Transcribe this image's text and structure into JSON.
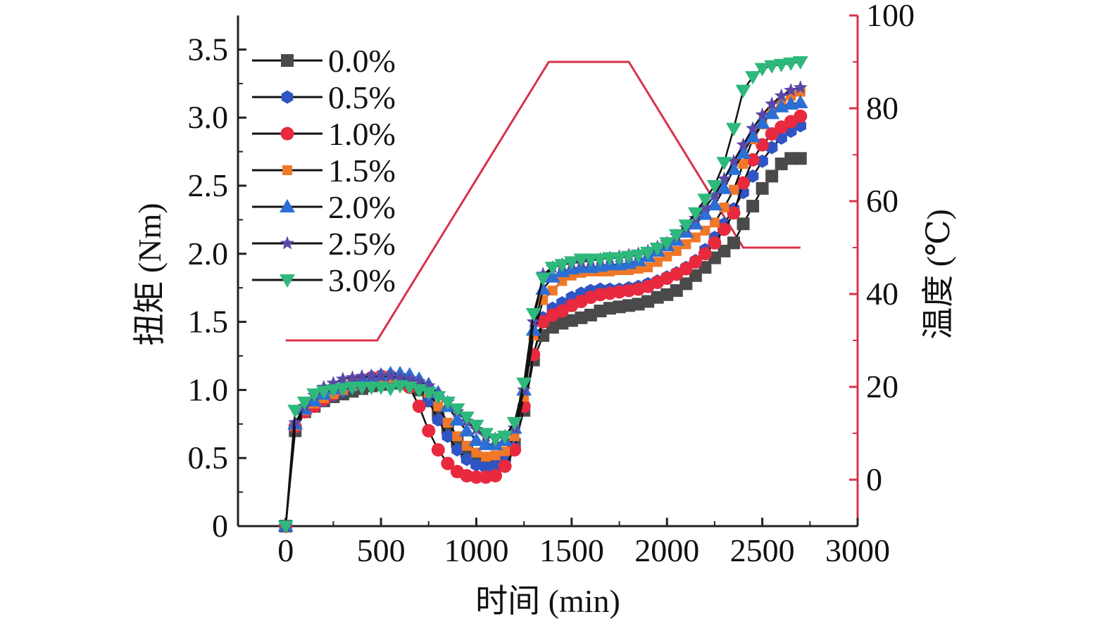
{
  "chart_data": {
    "type": "line",
    "xlabel": "时间 (min)",
    "ylabel": "扭矩 (Nm)",
    "y2label": "温度 (℃)",
    "xlim": [
      -250,
      3000
    ],
    "ylim": [
      0,
      3.75
    ],
    "y2lim": [
      -10,
      100
    ],
    "x_ticks": [
      0,
      500,
      1000,
      1500,
      2000,
      2500,
      3000
    ],
    "x_tick_labels": [
      "0",
      "500",
      "1000",
      "1500",
      "2000",
      "2500",
      "3000"
    ],
    "y_ticks": [
      0,
      0.5,
      1.0,
      1.5,
      2.0,
      2.5,
      3.0,
      3.5
    ],
    "y_tick_labels": [
      "0",
      "0.5",
      "1.0",
      "1.5",
      "2.0",
      "2.5",
      "3.0",
      "3.5"
    ],
    "y2_ticks": [
      0,
      20,
      40,
      60,
      80,
      100
    ],
    "y2_tick_labels": [
      "0",
      "20",
      "40",
      "60",
      "80",
      "100"
    ],
    "legend_position": "top-left",
    "axis_color": "#222222",
    "y2_axis_color": "#d8324a",
    "x": [
      0,
      50,
      100,
      150,
      200,
      250,
      300,
      350,
      400,
      450,
      500,
      550,
      600,
      650,
      700,
      750,
      800,
      850,
      900,
      950,
      1000,
      1050,
      1100,
      1150,
      1200,
      1250,
      1300,
      1350,
      1400,
      1450,
      1500,
      1550,
      1600,
      1650,
      1700,
      1750,
      1800,
      1850,
      1900,
      1950,
      2000,
      2050,
      2100,
      2150,
      2200,
      2250,
      2300,
      2350,
      2400,
      2450,
      2500,
      2550,
      2600,
      2650,
      2700
    ],
    "series": [
      {
        "name": "0.0%",
        "marker": "square",
        "color": "#4a4a4a",
        "values": [
          0,
          0.7,
          0.84,
          0.88,
          0.92,
          0.95,
          0.97,
          0.99,
          1.01,
          1.03,
          1.04,
          1.05,
          1.05,
          1.04,
          1.0,
          0.92,
          0.82,
          0.72,
          0.62,
          0.55,
          0.5,
          0.48,
          0.49,
          0.52,
          0.6,
          0.85,
          1.22,
          1.4,
          1.46,
          1.49,
          1.51,
          1.53,
          1.55,
          1.58,
          1.6,
          1.61,
          1.62,
          1.63,
          1.65,
          1.68,
          1.7,
          1.73,
          1.78,
          1.84,
          1.9,
          1.97,
          2.02,
          2.08,
          2.22,
          2.35,
          2.48,
          2.57,
          2.66,
          2.7,
          2.7
        ]
      },
      {
        "name": "0.5%",
        "marker": "hexagon",
        "color": "#2f55c4",
        "values": [
          0,
          0.72,
          0.84,
          0.88,
          0.92,
          0.96,
          0.99,
          1.02,
          1.04,
          1.06,
          1.07,
          1.08,
          1.08,
          1.06,
          1.02,
          0.92,
          0.78,
          0.66,
          0.56,
          0.49,
          0.45,
          0.43,
          0.44,
          0.48,
          0.58,
          0.88,
          1.26,
          1.53,
          1.6,
          1.64,
          1.68,
          1.71,
          1.73,
          1.74,
          1.74,
          1.74,
          1.75,
          1.76,
          1.78,
          1.8,
          1.83,
          1.86,
          1.9,
          1.95,
          2.03,
          2.12,
          2.22,
          2.33,
          2.45,
          2.57,
          2.68,
          2.78,
          2.85,
          2.9,
          2.94
        ]
      },
      {
        "name": "1.0%",
        "marker": "circle",
        "color": "#e8293e",
        "values": [
          0,
          0.73,
          0.84,
          0.88,
          0.93,
          0.97,
          1.01,
          1.04,
          1.07,
          1.09,
          1.1,
          1.1,
          1.07,
          1.02,
          0.88,
          0.7,
          0.56,
          0.46,
          0.4,
          0.37,
          0.36,
          0.36,
          0.37,
          0.44,
          0.56,
          0.88,
          1.26,
          1.5,
          1.55,
          1.58,
          1.62,
          1.65,
          1.68,
          1.7,
          1.71,
          1.72,
          1.73,
          1.74,
          1.76,
          1.79,
          1.82,
          1.85,
          1.89,
          1.94,
          2.0,
          2.08,
          2.18,
          2.3,
          2.52,
          2.69,
          2.8,
          2.88,
          2.93,
          2.97,
          3.01
        ]
      },
      {
        "name": "1.5%",
        "marker": "smallsquare",
        "color": "#f07828",
        "values": [
          0,
          0.74,
          0.85,
          0.9,
          0.94,
          0.97,
          1.0,
          1.03,
          1.06,
          1.08,
          1.09,
          1.09,
          1.08,
          1.07,
          1.03,
          0.98,
          0.88,
          0.76,
          0.66,
          0.59,
          0.54,
          0.51,
          0.52,
          0.55,
          0.66,
          0.95,
          1.4,
          1.66,
          1.73,
          1.8,
          1.84,
          1.86,
          1.87,
          1.87,
          1.87,
          1.88,
          1.88,
          1.89,
          1.9,
          1.94,
          1.98,
          2.02,
          2.07,
          2.12,
          2.17,
          2.23,
          2.34,
          2.47,
          2.66,
          2.84,
          2.95,
          3.04,
          3.11,
          3.16,
          3.19
        ]
      },
      {
        "name": "2.0%",
        "marker": "triangle-up",
        "color": "#2b6fd4",
        "values": [
          0,
          0.75,
          0.86,
          0.92,
          0.97,
          1.01,
          1.04,
          1.06,
          1.08,
          1.1,
          1.11,
          1.12,
          1.12,
          1.11,
          1.08,
          1.04,
          0.98,
          0.88,
          0.78,
          0.7,
          0.63,
          0.6,
          0.6,
          0.63,
          0.72,
          1.0,
          1.44,
          1.74,
          1.83,
          1.87,
          1.89,
          1.9,
          1.9,
          1.91,
          1.92,
          1.92,
          1.93,
          1.95,
          1.98,
          2.02,
          2.06,
          2.1,
          2.16,
          2.22,
          2.29,
          2.36,
          2.48,
          2.62,
          2.74,
          2.86,
          2.96,
          3.03,
          3.08,
          3.1,
          3.11
        ]
      },
      {
        "name": "2.5%",
        "marker": "star",
        "color": "#5a48a8",
        "values": [
          0,
          0.76,
          0.88,
          0.96,
          1.02,
          1.05,
          1.08,
          1.09,
          1.1,
          1.1,
          1.1,
          1.1,
          1.09,
          1.08,
          1.06,
          1.03,
          0.97,
          0.91,
          0.84,
          0.77,
          0.71,
          0.66,
          0.64,
          0.66,
          0.72,
          1.0,
          1.5,
          1.85,
          1.9,
          1.92,
          1.93,
          1.94,
          1.95,
          1.96,
          1.97,
          1.98,
          1.99,
          2.0,
          2.02,
          2.05,
          2.08,
          2.13,
          2.19,
          2.26,
          2.34,
          2.43,
          2.55,
          2.68,
          2.8,
          2.92,
          3.02,
          3.1,
          3.16,
          3.2,
          3.22
        ]
      },
      {
        "name": "3.0%",
        "marker": "triangle-down",
        "color": "#2eb87c",
        "values": [
          0,
          0.85,
          0.91,
          0.97,
          0.99,
          1.0,
          1.01,
          1.02,
          1.02,
          1.02,
          1.02,
          1.01,
          1.03,
          1.02,
          1.0,
          0.98,
          0.95,
          0.91,
          0.86,
          0.8,
          0.74,
          0.68,
          0.64,
          0.66,
          0.76,
          1.05,
          1.56,
          1.82,
          1.9,
          1.92,
          1.94,
          1.96,
          1.96,
          1.96,
          1.97,
          1.97,
          1.98,
          1.99,
          2.01,
          2.04,
          2.08,
          2.14,
          2.21,
          2.3,
          2.4,
          2.5,
          2.67,
          2.92,
          3.2,
          3.3,
          3.36,
          3.38,
          3.39,
          3.4,
          3.41
        ]
      }
    ],
    "temperature": {
      "color": "#d8324a",
      "x": [
        0,
        480,
        1380,
        1800,
        2400,
        2700
      ],
      "values": [
        30,
        30,
        90,
        90,
        50,
        50
      ]
    }
  }
}
